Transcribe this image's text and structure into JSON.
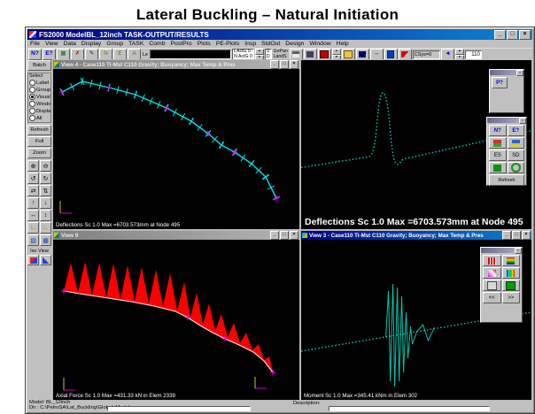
{
  "page": {
    "title": "Lateral Buckling – Natural Initiation"
  },
  "colors": {
    "titlebar_blue": "#000080",
    "chrome_gray": "#c0c0c0",
    "canvas_black": "#000000",
    "pipeline_cyan": "#00e5e5",
    "deflection_teal": "#00c8ae",
    "axial_force_red": "#ff0000",
    "node_marker_magenta": "#ff00ff"
  },
  "window": {
    "title": "FS2000 ModelBL_12inch TASK-OUTPUT/RESULTS",
    "controls": {
      "min": "_",
      "max": "□",
      "close": "×"
    },
    "menu": [
      "File",
      "View",
      "Data",
      "Display",
      "Group",
      "TASK",
      "Comb",
      "PostPro",
      "Plots",
      "PE-Plots",
      "Insp",
      "StdOut",
      "Design",
      "Window",
      "Help"
    ],
    "toolbar": {
      "btn_n": "N?",
      "btn_e": "E?",
      "le": "Le",
      "lactg": "LActG 0",
      "nactg": "N ActG 0",
      "s_row": "S",
      "d_row": "D",
      "gopan": "GoPan",
      "lands": "LandS",
      "csys": "CSys=0",
      "counter": "110",
      "glyphs": {
        "grid": "▦",
        "delete": "✗",
        "pencil": "✎",
        "label_n": "N",
        "label_e": "E",
        "label_a": "A",
        "arrows": "↔",
        "back": "◄",
        "up": "▲",
        "down": "▼"
      }
    }
  },
  "sidebar": {
    "batch": "Batch",
    "select": "Select",
    "radios": [
      {
        "label": "Label",
        "checked": false
      },
      {
        "label": "Group",
        "checked": false
      },
      {
        "label": "Visual",
        "checked": true
      },
      {
        "label": "Windo",
        "checked": false
      },
      {
        "label": "Displa",
        "checked": false
      },
      {
        "label": "All",
        "checked": false
      }
    ],
    "refresh": "Refresh",
    "full": "Full",
    "zoom": "Zoom",
    "tools": [
      "⊕",
      "⊖",
      "↺",
      "↻",
      "⇄",
      "⇅",
      "↑",
      "↓",
      "↔",
      "↕",
      "∟",
      "∟",
      "▨",
      "▦"
    ],
    "iso_view": "Iso View"
  },
  "viewports": {
    "top_left": {
      "title": "View 4 - Case110 Ti-Mst C110 Gravity; Buoyancy; Max Temp & Pres",
      "status": "Deflections Sc 1.0  Max =6703.573mm at Node 495"
    },
    "top_right": {
      "overlay": "Deflections Sc 1.0  Max =6703.573mm at Node 495",
      "palette_pp": "P?",
      "palette_tools": {
        "n": "N?",
        "e": "E?",
        "es": "ES",
        "sd": "SD",
        "refresh": "Refresh"
      }
    },
    "bottom_left": {
      "title": "View 9",
      "status": "Axial Force Sc 1.0  Max =431.33 kN in Elem 2339"
    },
    "bottom_right": {
      "title": "View 3 - Case110 Ti-Mst C110 Gravity; Buoyancy; Max Temp & Pres",
      "status": "Moment Sc 1.0  Max =345.41 kNm in Elem 302",
      "nav_prev": "<<",
      "nav_next": ">>"
    }
  },
  "statusbar": {
    "model": "Model:  BL_12inch",
    "dir": "Dir : C:\\PetroSA\\Lat_Buckling\\Global_Model",
    "description": "Description:"
  }
}
